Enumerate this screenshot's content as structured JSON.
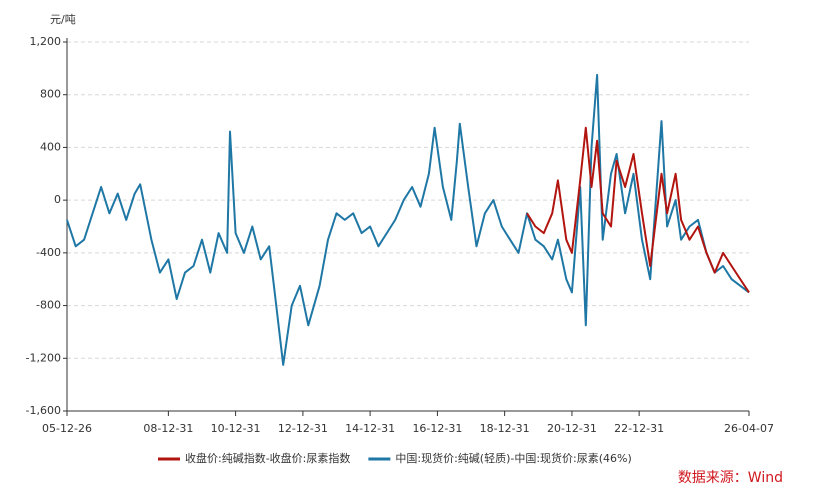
{
  "chart_data": {
    "type": "line",
    "y_label": "元/吨",
    "source": "数据来源：Wind",
    "grid": true,
    "legend": "bottom",
    "x": [
      "05-12-26",
      "06-03-31",
      "06-06-30",
      "06-09-30",
      "06-12-31",
      "07-03-31",
      "07-06-30",
      "07-09-30",
      "07-12-31",
      "08-02-29",
      "08-06-30",
      "08-09-30",
      "08-12-31",
      "09-03-31",
      "09-06-30",
      "09-09-30",
      "09-12-31",
      "10-03-31",
      "10-06-30",
      "10-09-30",
      "10-10-31",
      "10-12-31",
      "11-03-31",
      "11-06-30",
      "11-09-30",
      "11-12-31",
      "12-02-29",
      "12-05-31",
      "12-08-31",
      "12-11-30",
      "13-02-28",
      "13-06-30",
      "13-09-30",
      "13-12-31",
      "14-03-31",
      "14-06-30",
      "14-09-30",
      "14-12-31",
      "15-03-31",
      "15-06-30",
      "15-09-30",
      "15-12-31",
      "16-03-31",
      "16-06-30",
      "16-09-30",
      "16-11-30",
      "17-02-28",
      "17-05-31",
      "17-07-31",
      "17-08-31",
      "17-11-30",
      "18-02-28",
      "18-05-31",
      "18-08-31",
      "18-11-30",
      "19-02-28",
      "19-05-31",
      "19-08-31",
      "19-11-30",
      "20-02-29",
      "20-05-31",
      "20-07-31",
      "20-10-31",
      "20-12-31",
      "21-03-31",
      "21-05-31",
      "21-07-31",
      "21-09-30",
      "21-11-30",
      "22-02-28",
      "22-04-30",
      "22-07-31",
      "22-10-31",
      "23-01-31",
      "23-04-30",
      "23-08-31",
      "23-10-31",
      "24-01-31",
      "24-03-31",
      "24-06-30",
      "24-09-30",
      "24-12-31",
      "25-03-31",
      "25-06-30",
      "25-09-30",
      "26-04-07"
    ],
    "series": [
      {
        "name": "收盘价:纯碱指数-收盘价:尿素指数",
        "color": "#b2150f",
        "values": [
          null,
          null,
          null,
          null,
          null,
          null,
          null,
          null,
          null,
          null,
          null,
          null,
          null,
          null,
          null,
          null,
          null,
          null,
          null,
          null,
          null,
          null,
          null,
          null,
          null,
          null,
          null,
          null,
          null,
          null,
          null,
          null,
          null,
          null,
          null,
          null,
          null,
          null,
          null,
          null,
          null,
          null,
          null,
          null,
          null,
          null,
          null,
          null,
          null,
          null,
          null,
          null,
          null,
          null,
          null,
          null,
          null,
          -100,
          -200,
          -250,
          -100,
          150,
          -300,
          -400,
          150,
          550,
          100,
          450,
          -100,
          -200,
          300,
          100,
          350,
          -100,
          -500,
          200,
          -100,
          200,
          -150,
          -300,
          -200,
          -400,
          -550,
          -400,
          -500,
          -700
        ]
      },
      {
        "name": "中国:现货价:纯碱(轻质)-中国:现货价:尿素(46%)",
        "color": "#1f77a5",
        "values": [
          -150,
          -350,
          -300,
          -100,
          100,
          -100,
          50,
          -150,
          50,
          120,
          -300,
          -550,
          -450,
          -750,
          -550,
          -500,
          -300,
          -550,
          -250,
          -400,
          520,
          -250,
          -400,
          -200,
          -450,
          -350,
          -700,
          -1250,
          -800,
          -650,
          -950,
          -650,
          -300,
          -100,
          -150,
          -100,
          -250,
          -200,
          -350,
          -250,
          -150,
          0,
          100,
          -50,
          200,
          550,
          100,
          -150,
          300,
          580,
          100,
          -350,
          -100,
          0,
          -200,
          -300,
          -400,
          -100,
          -300,
          -350,
          -450,
          -300,
          -600,
          -700,
          100,
          -950,
          400,
          950,
          -300,
          200,
          350,
          -100,
          200,
          -300,
          -600,
          600,
          -200,
          0,
          -300,
          -200,
          -150,
          -400,
          -550,
          -500,
          -600,
          -700
        ]
      }
    ],
    "xlim": [
      "05-12-26",
      "26-04-07"
    ],
    "xticks": [
      "05-12-26",
      "08-12-31",
      "10-12-31",
      "12-12-31",
      "14-12-31",
      "16-12-31",
      "18-12-31",
      "20-12-31",
      "22-12-31",
      "26-04-07"
    ],
    "ylim": [
      -1600,
      1200
    ],
    "yticks": [
      {
        "value": 1200,
        "label": "1,200"
      },
      800,
      400,
      0,
      -400,
      -800,
      {
        "value": -1200,
        "label": "-1,200"
      },
      {
        "value": -1600,
        "label": "-1,600"
      }
    ]
  }
}
